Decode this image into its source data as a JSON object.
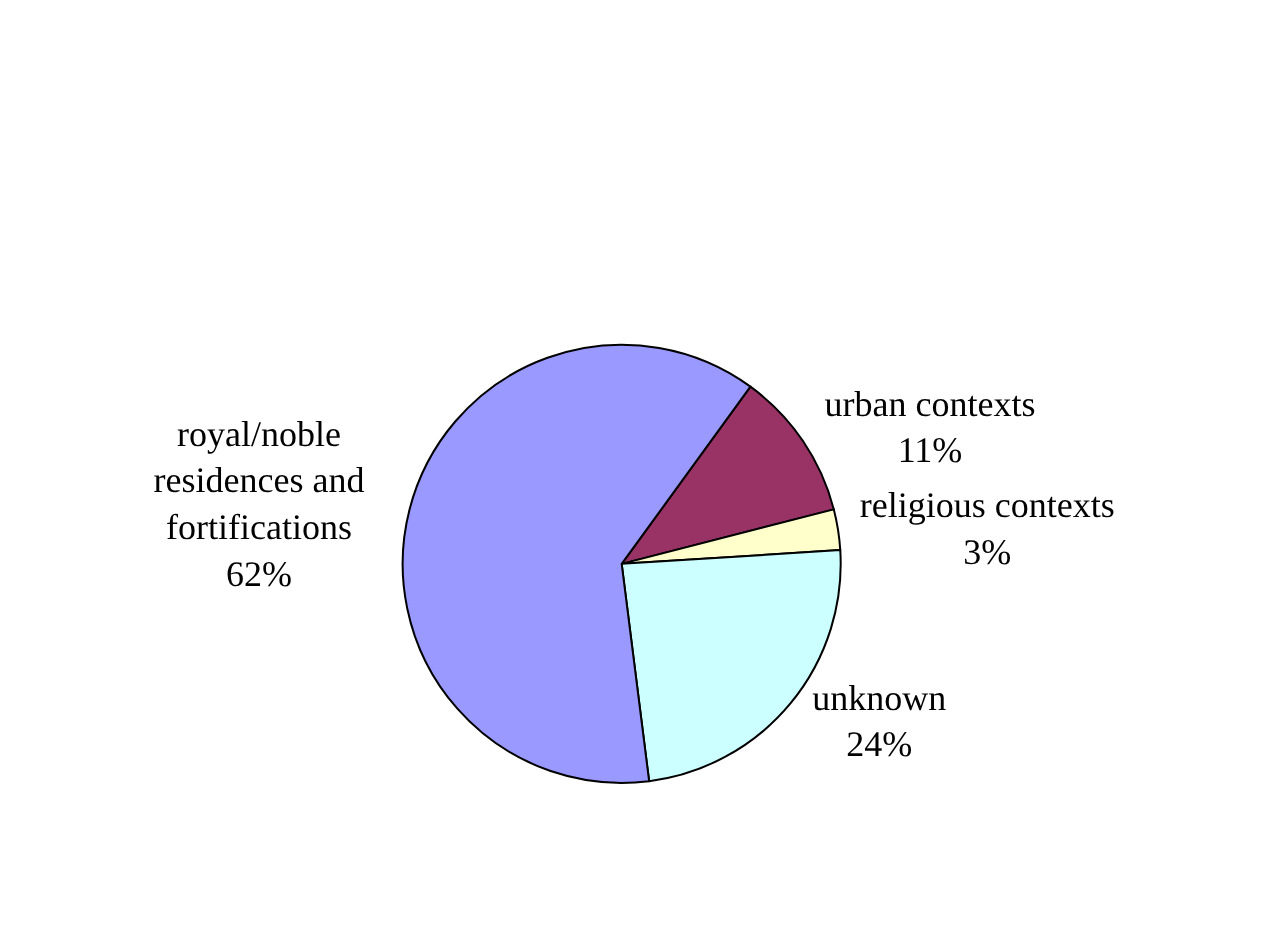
{
  "chart_data": {
    "type": "pie",
    "categories": [
      "urban contexts",
      "religious contexts",
      "unknown",
      "royal/noble residences and fortifications"
    ],
    "values": [
      11,
      3,
      24,
      62
    ],
    "colors": [
      "#993366",
      "#ffffcc",
      "#ccffff",
      "#9999ff"
    ],
    "value_labels": [
      "11%",
      "3%",
      "24%",
      "62%"
    ],
    "legend": false
  }
}
